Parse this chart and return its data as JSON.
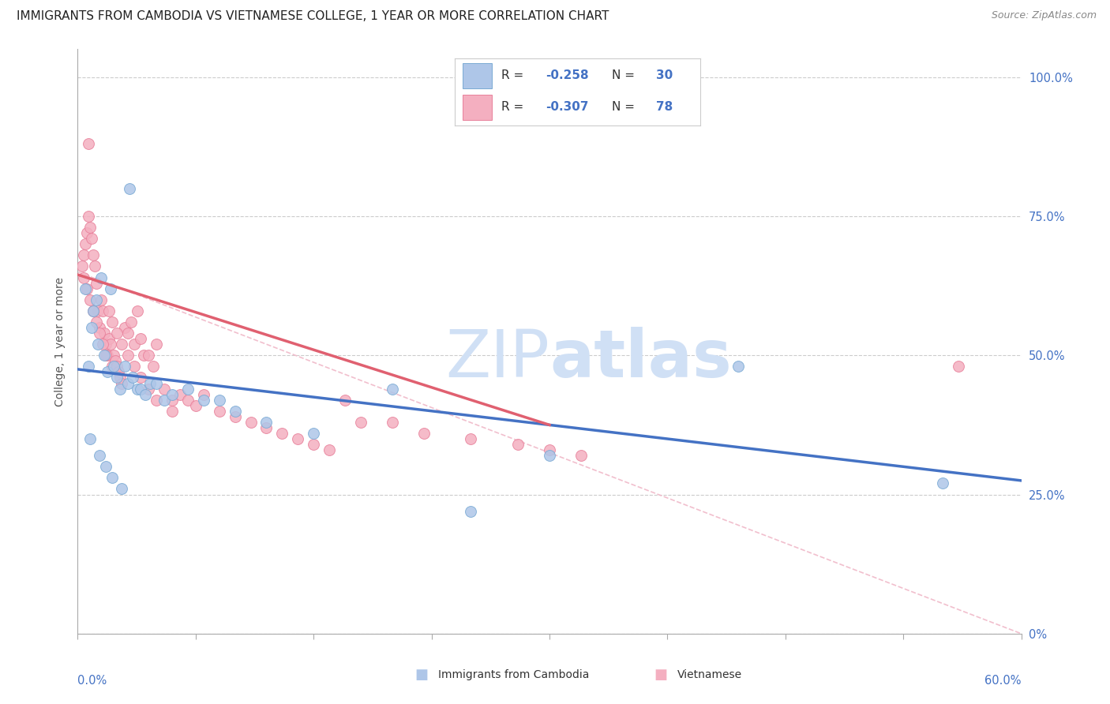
{
  "title": "IMMIGRANTS FROM CAMBODIA VS VIETNAMESE COLLEGE, 1 YEAR OR MORE CORRELATION CHART",
  "source": "Source: ZipAtlas.com",
  "ylabel": "College, 1 year or more",
  "xmin": 0.0,
  "xmax": 0.6,
  "ymin": 0.0,
  "ymax": 1.05,
  "blue_color": "#aec6e8",
  "pink_color": "#f4afc0",
  "blue_edge_color": "#7aaad4",
  "pink_edge_color": "#e8809a",
  "blue_line_color": "#4472c4",
  "pink_line_color": "#e06070",
  "diag_line_color": "#f0b8c8",
  "grid_color": "#cccccc",
  "bg_color": "#ffffff",
  "title_fontsize": 11,
  "label_fontsize": 10,
  "tick_fontsize": 10.5,
  "watermark_color": "#d0e0f5",
  "watermark_fontsize": 60,
  "blue_scatter_x": [
    0.005,
    0.007,
    0.009,
    0.01,
    0.012,
    0.013,
    0.015,
    0.017,
    0.019,
    0.021,
    0.023,
    0.025,
    0.027,
    0.03,
    0.032,
    0.035,
    0.038,
    0.04,
    0.043,
    0.046,
    0.05,
    0.055,
    0.06,
    0.07,
    0.08,
    0.09,
    0.1,
    0.12,
    0.15,
    0.2,
    0.25,
    0.3,
    0.42,
    0.55,
    0.008,
    0.014,
    0.018,
    0.022,
    0.028,
    0.033
  ],
  "blue_scatter_y": [
    0.62,
    0.48,
    0.55,
    0.58,
    0.6,
    0.52,
    0.64,
    0.5,
    0.47,
    0.62,
    0.48,
    0.46,
    0.44,
    0.48,
    0.45,
    0.46,
    0.44,
    0.44,
    0.43,
    0.45,
    0.45,
    0.42,
    0.43,
    0.44,
    0.42,
    0.42,
    0.4,
    0.38,
    0.36,
    0.44,
    0.22,
    0.32,
    0.48,
    0.27,
    0.35,
    0.32,
    0.3,
    0.28,
    0.26,
    0.8
  ],
  "pink_scatter_x": [
    0.003,
    0.004,
    0.005,
    0.006,
    0.007,
    0.008,
    0.009,
    0.01,
    0.011,
    0.012,
    0.013,
    0.014,
    0.015,
    0.016,
    0.017,
    0.018,
    0.019,
    0.02,
    0.021,
    0.022,
    0.023,
    0.024,
    0.025,
    0.026,
    0.027,
    0.028,
    0.03,
    0.032,
    0.034,
    0.036,
    0.038,
    0.04,
    0.042,
    0.045,
    0.048,
    0.05,
    0.055,
    0.06,
    0.065,
    0.07,
    0.075,
    0.08,
    0.09,
    0.1,
    0.11,
    0.12,
    0.13,
    0.14,
    0.15,
    0.16,
    0.17,
    0.18,
    0.2,
    0.22,
    0.25,
    0.28,
    0.3,
    0.32,
    0.004,
    0.006,
    0.008,
    0.01,
    0.012,
    0.014,
    0.016,
    0.018,
    0.02,
    0.022,
    0.025,
    0.028,
    0.032,
    0.036,
    0.04,
    0.045,
    0.05,
    0.06,
    0.56,
    0.007
  ],
  "pink_scatter_y": [
    0.66,
    0.68,
    0.7,
    0.72,
    0.75,
    0.73,
    0.71,
    0.68,
    0.66,
    0.63,
    0.58,
    0.55,
    0.6,
    0.58,
    0.54,
    0.52,
    0.5,
    0.53,
    0.52,
    0.48,
    0.5,
    0.49,
    0.48,
    0.47,
    0.46,
    0.45,
    0.55,
    0.54,
    0.56,
    0.52,
    0.58,
    0.53,
    0.5,
    0.5,
    0.48,
    0.52,
    0.44,
    0.42,
    0.43,
    0.42,
    0.41,
    0.43,
    0.4,
    0.39,
    0.38,
    0.37,
    0.36,
    0.35,
    0.34,
    0.33,
    0.42,
    0.38,
    0.38,
    0.36,
    0.35,
    0.34,
    0.33,
    0.32,
    0.64,
    0.62,
    0.6,
    0.58,
    0.56,
    0.54,
    0.52,
    0.5,
    0.58,
    0.56,
    0.54,
    0.52,
    0.5,
    0.48,
    0.46,
    0.44,
    0.42,
    0.4,
    0.48,
    0.88
  ],
  "blue_line_x0": 0.0,
  "blue_line_x1": 0.6,
  "blue_line_y0": 0.475,
  "blue_line_y1": 0.275,
  "pink_line_x0": 0.0,
  "pink_line_x1": 0.3,
  "pink_line_y0": 0.645,
  "pink_line_y1": 0.375,
  "diag_line_x0": 0.0,
  "diag_line_x1": 0.6,
  "diag_line_y0": 0.65,
  "diag_line_y1": 0.0,
  "right_ytick_vals": [
    0.0,
    0.25,
    0.5,
    0.75,
    1.0
  ],
  "right_ytick_labels": [
    "0%",
    "25.0%",
    "50.0%",
    "75.0%",
    "100.0%"
  ]
}
